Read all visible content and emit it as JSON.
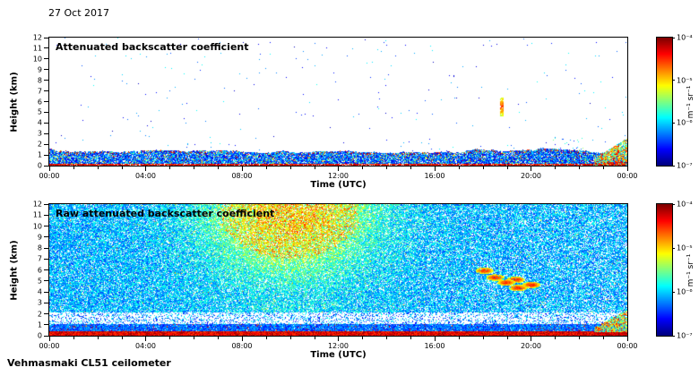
{
  "date_label": "27 Oct 2017",
  "footer_label": "Vehmasmaki CL51 ceilometer",
  "colorbar": {
    "label": "m⁻¹ sr⁻¹",
    "tick_labels": [
      "10⁻⁴",
      "10⁻⁵",
      "10⁻⁶",
      "10⁻⁷"
    ],
    "colormap": "jet",
    "scale": "log",
    "range_min": "1e-7",
    "range_max": "1e-4"
  },
  "panels": [
    {
      "title": "Attenuated backscatter coefficient",
      "xlabel": "Time (UTC)",
      "ylabel": "Height (km)",
      "x_tick_labels": [
        "00:00",
        "04:00",
        "08:00",
        "12:00",
        "16:00",
        "20:00",
        "00:00"
      ],
      "y_tick_labels": [
        "0",
        "1",
        "2",
        "3",
        "4",
        "5",
        "6",
        "7",
        "8",
        "9",
        "10",
        "11",
        "12"
      ]
    },
    {
      "title": "Raw attenuated backscatter coefficient",
      "xlabel": "Time (UTC)",
      "ylabel": "Height (km)",
      "x_tick_labels": [
        "00:00",
        "04:00",
        "08:00",
        "12:00",
        "16:00",
        "20:00",
        "00:00"
      ],
      "y_tick_labels": [
        "0",
        "1",
        "2",
        "3",
        "4",
        "5",
        "6",
        "7",
        "8",
        "9",
        "10",
        "11",
        "12"
      ]
    }
  ],
  "chart_data": [
    {
      "type": "heatmap",
      "title": "Attenuated backscatter coefficient",
      "xlabel": "Time (UTC)",
      "ylabel": "Height (km)",
      "x_range_hours": [
        0,
        24
      ],
      "y_range_km": [
        0,
        12
      ],
      "color_scale": {
        "units": "m⁻¹ sr⁻¹",
        "scale": "log",
        "min": "1e-7",
        "max": "1e-4",
        "colormap": "jet"
      },
      "features": [
        {
          "name": "surface-layer",
          "hours": [
            0,
            24
          ],
          "km": [
            0,
            0.15
          ],
          "level": "~1e-4 dark red line at ground"
        },
        {
          "name": "aerosol-boundary-layer",
          "hours": [
            0,
            24
          ],
          "km": [
            0,
            1.4
          ],
          "level": "1e-6 to 1e-5 blue/cyan speckle, red specks near layer top"
        },
        {
          "name": "clear-air",
          "hours": [
            0,
            24
          ],
          "km": [
            1.5,
            12
          ],
          "level": "below 1e-7 (white)"
        },
        {
          "name": "cloud-streak",
          "hours": [
            18.7,
            18.85
          ],
          "km": [
            4.6,
            6.4
          ],
          "level": "~1e-5 thin green/yellow vertical streak"
        },
        {
          "name": "scattered-specks",
          "hours": [
            20.5,
            22.6
          ],
          "km": [
            0,
            2.6
          ],
          "level": "sparse ~1e-6 specks"
        },
        {
          "name": "late-evening-plume",
          "hours": [
            22.6,
            24
          ],
          "km": [
            0,
            2.6
          ],
          "level": "1e-5 to 1e-4 green/orange/red plume at right edge"
        }
      ]
    },
    {
      "type": "heatmap",
      "title": "Raw attenuated backscatter coefficient",
      "xlabel": "Time (UTC)",
      "ylabel": "Height (km)",
      "x_range_hours": [
        0,
        24
      ],
      "y_range_km": [
        0,
        12
      ],
      "color_scale": {
        "units": "m⁻¹ sr⁻¹",
        "scale": "log",
        "min": "1e-7",
        "max": "1e-4",
        "colormap": "jet"
      },
      "features": [
        {
          "name": "background-noise",
          "hours": [
            0,
            24
          ],
          "km": [
            0,
            12
          ],
          "level": "1e-7 to 1e-6 dense blue speckle with green"
        },
        {
          "name": "daytime-noise-enhancement",
          "hours": [
            6,
            14
          ],
          "km": [
            4,
            12
          ],
          "level": "1e-6 to 1e-5 green/yellow/orange, strongest 08-13 h above 8 km"
        },
        {
          "name": "cloud-streaks",
          "hours": [
            17.8,
            20.3
          ],
          "km": [
            3.8,
            6.3
          ],
          "level": "~1e-5 yellow/green descending streaks"
        },
        {
          "name": "surface-band",
          "hours": [
            0,
            24
          ],
          "km": [
            0,
            0.4
          ],
          "level": "~1e-4 red band"
        },
        {
          "name": "boundary-layer",
          "hours": [
            0,
            24
          ],
          "km": [
            0.4,
            1.05
          ],
          "level": "~1e-6 dense blue band"
        },
        {
          "name": "low-signal-gap",
          "hours": [
            0,
            24
          ],
          "km": [
            1.05,
            2.1
          ],
          "level": "mostly white with sparse blue"
        },
        {
          "name": "late-evening-plume",
          "hours": [
            22.6,
            24
          ],
          "km": [
            0,
            2.4
          ],
          "level": "1e-5 to 1e-4 green/orange/red plume at right edge"
        }
      ]
    }
  ]
}
